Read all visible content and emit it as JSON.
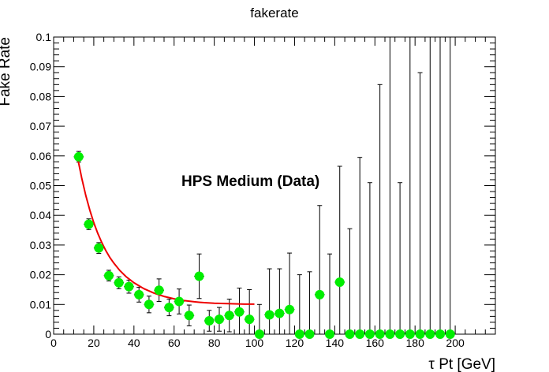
{
  "chart_data": {
    "type": "scatter",
    "title": "fakerate",
    "xlabel": "τ Pt [GeV]",
    "ylabel": "Fake Rate",
    "annotation": "HPS Medium (Data)",
    "xlim": [
      0,
      220
    ],
    "ylim": [
      0,
      0.1
    ],
    "x_ticks": [
      0,
      20,
      40,
      60,
      80,
      100,
      120,
      140,
      160,
      180,
      200
    ],
    "y_ticks": [
      0,
      0.01,
      0.02,
      0.03,
      0.04,
      0.05,
      0.06,
      0.07,
      0.08,
      0.09,
      0.1
    ],
    "y_tick_labels": [
      "0",
      "0.01",
      "0.02",
      "0.03",
      "0.04",
      "0.05",
      "0.06",
      "0.07",
      "0.08",
      "0.09",
      "0.1"
    ],
    "grid": false,
    "series": [
      {
        "marker": "circle",
        "color": "#00ee00",
        "points": [
          {
            "x": 12.5,
            "y": 0.0597,
            "err": 0.0018
          },
          {
            "x": 17.5,
            "y": 0.037,
            "err": 0.0018
          },
          {
            "x": 22.5,
            "y": 0.029,
            "err": 0.0018
          },
          {
            "x": 27.5,
            "y": 0.0197,
            "err": 0.0018
          },
          {
            "x": 32.5,
            "y": 0.0173,
            "err": 0.002
          },
          {
            "x": 37.5,
            "y": 0.016,
            "err": 0.0022
          },
          {
            "x": 42.5,
            "y": 0.0133,
            "err": 0.0025
          },
          {
            "x": 47.5,
            "y": 0.01,
            "err": 0.0028
          },
          {
            "x": 52.5,
            "y": 0.0148,
            "err": 0.0038
          },
          {
            "x": 57.5,
            "y": 0.009,
            "err": 0.0028
          },
          {
            "x": 62.5,
            "y": 0.011,
            "err": 0.0042
          },
          {
            "x": 67.5,
            "y": 0.0063,
            "err": 0.0035
          },
          {
            "x": 72.5,
            "y": 0.0195,
            "err": 0.0075
          },
          {
            "x": 77.5,
            "y": 0.0045,
            "err": 0.0035
          },
          {
            "x": 82.5,
            "y": 0.005,
            "err": 0.004
          },
          {
            "x": 87.5,
            "y": 0.0063,
            "err": 0.0055
          },
          {
            "x": 92.5,
            "y": 0.0075,
            "err": 0.008
          },
          {
            "x": 97.5,
            "y": 0.005,
            "err": 0.01
          },
          {
            "x": 102.5,
            "y": 0.0,
            "err": 0.01
          },
          {
            "x": 107.5,
            "y": 0.0065,
            "err": 0.0155
          },
          {
            "x": 112.5,
            "y": 0.007,
            "err": 0.015
          },
          {
            "x": 117.5,
            "y": 0.0083,
            "err": 0.019
          },
          {
            "x": 122.5,
            "y": 0.0,
            "err": 0.02
          },
          {
            "x": 127.5,
            "y": 0.0,
            "err": 0.021
          },
          {
            "x": 132.5,
            "y": 0.0133,
            "err": 0.03
          },
          {
            "x": 137.5,
            "y": 0.0,
            "err": 0.027
          },
          {
            "x": 142.5,
            "y": 0.0175,
            "err": 0.039
          },
          {
            "x": 147.5,
            "y": 0.0,
            "err": 0.0355
          },
          {
            "x": 152.5,
            "y": 0.0,
            "err": 0.0595
          },
          {
            "x": 157.5,
            "y": 0.0,
            "err": 0.051
          },
          {
            "x": 162.5,
            "y": 0.0,
            "err": 0.084
          },
          {
            "x": 167.5,
            "y": 0.0,
            "err": 0.15
          },
          {
            "x": 172.5,
            "y": 0.0,
            "err": 0.051
          },
          {
            "x": 177.5,
            "y": 0.0,
            "err": 0.15
          },
          {
            "x": 182.5,
            "y": 0.0,
            "err": 0.088
          },
          {
            "x": 187.5,
            "y": 0.0,
            "err": 0.15
          },
          {
            "x": 192.5,
            "y": 0.0,
            "err": 0.15
          },
          {
            "x": 197.5,
            "y": 0.0,
            "err": 0.15
          }
        ]
      }
    ],
    "fit": {
      "color": "#ee0000",
      "x": [
        12,
        14,
        16,
        18,
        20,
        22,
        24,
        26,
        28,
        30,
        33,
        36,
        40,
        45,
        50,
        55,
        60,
        65,
        70,
        75,
        80,
        85,
        90,
        95,
        100
      ],
      "y": [
        0.0591,
        0.0525,
        0.0467,
        0.0418,
        0.0375,
        0.0339,
        0.0308,
        0.0281,
        0.0258,
        0.0239,
        0.0214,
        0.0194,
        0.0173,
        0.0153,
        0.0138,
        0.0127,
        0.0119,
        0.0113,
        0.0109,
        0.0106,
        0.0104,
        0.0103,
        0.0102,
        0.0101,
        0.0101
      ]
    }
  }
}
